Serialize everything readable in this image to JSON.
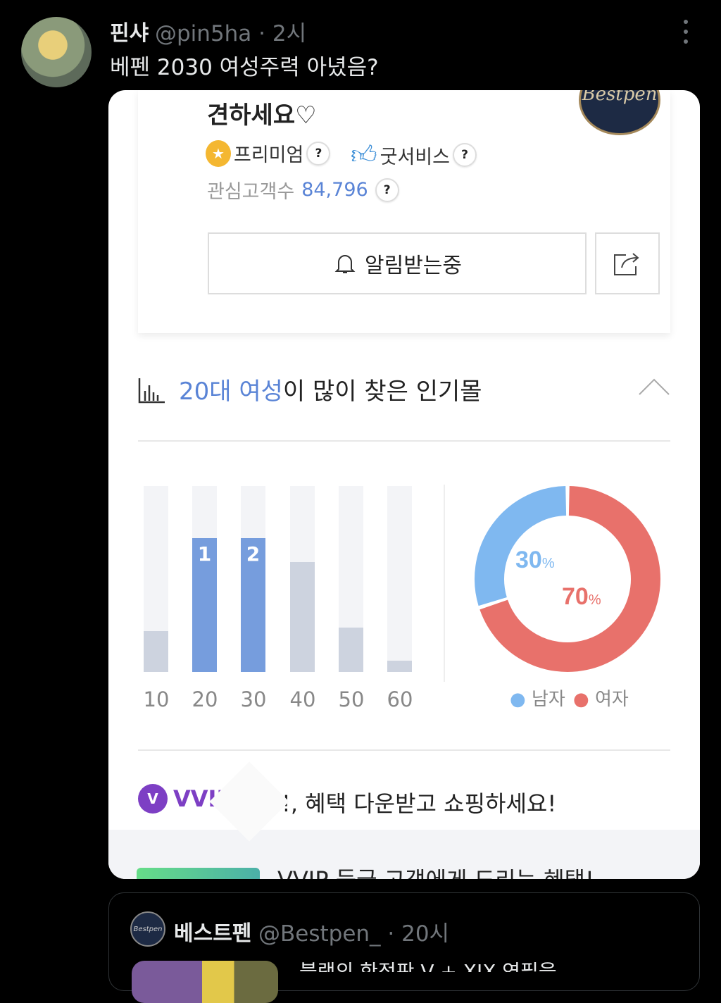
{
  "tweet": {
    "name": "핀샤",
    "handle": "@pin5ha · 2시",
    "text": "베펜 2030 여성주력 아녔음?"
  },
  "card": {
    "logo_text": "Bestpen",
    "shop_title": "견하세요♡",
    "badges": [
      {
        "label": "프리미엄",
        "icon": "medal-icon"
      },
      {
        "label": "굿서비스",
        "icon": "thumbs-up-icon"
      }
    ],
    "help": "?",
    "interest_label": "관심고객수",
    "interest_value": "84,796",
    "alarm_label": "알림받는중",
    "section": {
      "highlight": "20대 여성",
      "rest": "이 많이 찾은 인기몰"
    },
    "vvip_logo": "VVIP",
    "vvip_v": "V",
    "vvip_text": "!, 혜택 다운받고 쇼핑하세요!",
    "cut_text": "VVIP 등급 고객에게 드리는 혜택!"
  },
  "chart_data": [
    {
      "type": "bar",
      "categories": [
        "10",
        "20",
        "30",
        "40",
        "50",
        "60"
      ],
      "values": [
        22,
        72,
        72,
        59,
        24,
        6
      ],
      "rank_labels": [
        "",
        "1",
        "2",
        "",
        "",
        ""
      ],
      "highlight": [
        "20",
        "30"
      ],
      "ylim": [
        0,
        100
      ],
      "colors": {
        "highlight": "#769ddd",
        "normal": "#cdd3df",
        "track": "#f3f4f7"
      }
    },
    {
      "type": "pie",
      "donut": true,
      "series": [
        {
          "name": "남자",
          "value": 30,
          "label": "30",
          "unit": "%",
          "color": "#7fb8f0"
        },
        {
          "name": "여자",
          "value": 70,
          "label": "70",
          "unit": "%",
          "color": "#e8716b"
        }
      ]
    }
  ],
  "quote": {
    "name": "베스트펜",
    "handle": "@Bestpen_ · 20시",
    "avatar_text": "Bestpen",
    "text": "블랙의 한정판 V + XIX 연필을"
  }
}
